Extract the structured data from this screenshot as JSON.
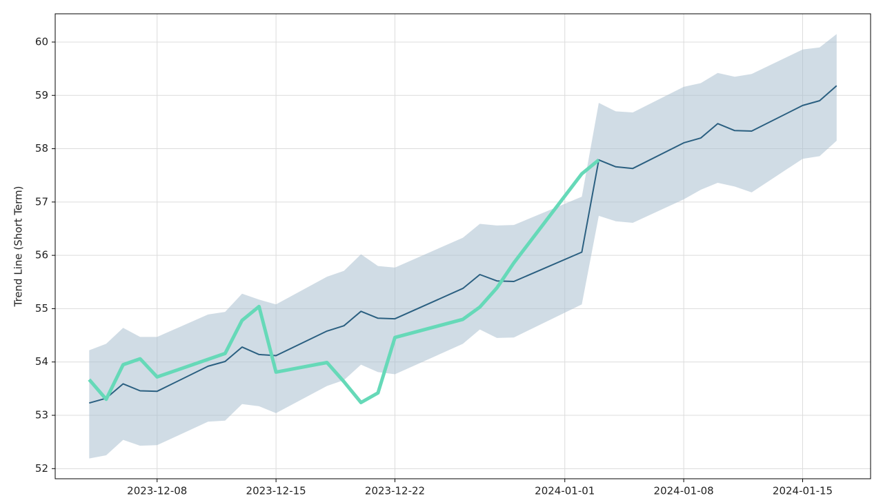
{
  "chart_data": {
    "type": "line",
    "y_label": "Trend Line (Short Term)",
    "x": [
      "2023-12-04",
      "2023-12-05",
      "2023-12-06",
      "2023-12-07",
      "2023-12-08",
      "2023-12-11",
      "2023-12-12",
      "2023-12-13",
      "2023-12-14",
      "2023-12-15",
      "2023-12-18",
      "2023-12-19",
      "2023-12-20",
      "2023-12-21",
      "2023-12-22",
      "2023-12-26",
      "2023-12-27",
      "2023-12-28",
      "2023-12-29",
      "2024-01-02",
      "2024-01-03",
      "2024-01-04",
      "2024-01-05",
      "2024-01-08",
      "2024-01-09",
      "2024-01-10",
      "2024-01-11",
      "2024-01-12",
      "2024-01-15",
      "2024-01-16",
      "2024-01-17"
    ],
    "band": {
      "color": "#a9c0cf",
      "upper": [
        54.22,
        54.34,
        54.64,
        54.47,
        54.47,
        54.89,
        54.94,
        55.28,
        55.17,
        55.08,
        55.6,
        55.71,
        56.02,
        55.8,
        55.77,
        56.33,
        56.59,
        56.56,
        56.57,
        57.1,
        58.86,
        58.7,
        58.68,
        59.16,
        59.23,
        59.42,
        59.35,
        59.4,
        59.86,
        59.9,
        60.15
      ],
      "lower": [
        52.19,
        52.25,
        52.54,
        52.43,
        52.44,
        52.88,
        52.9,
        53.21,
        53.17,
        53.04,
        53.55,
        53.66,
        53.95,
        53.81,
        53.77,
        54.34,
        54.61,
        54.45,
        54.46,
        55.08,
        56.74,
        56.64,
        56.61,
        57.05,
        57.23,
        57.36,
        57.29,
        57.18,
        57.81,
        57.86,
        58.15
      ]
    },
    "series": [
      {
        "color": "#2a5f80",
        "width": 2,
        "values": [
          53.23,
          53.32,
          53.59,
          53.46,
          53.45,
          53.92,
          54.01,
          54.28,
          54.14,
          54.12,
          54.58,
          54.68,
          54.95,
          54.82,
          54.81,
          55.38,
          55.64,
          55.52,
          55.51,
          56.06,
          57.79,
          57.66,
          57.63,
          58.11,
          58.2,
          58.47,
          58.34,
          58.33,
          58.81,
          58.9,
          59.18
        ]
      },
      {
        "color": "#66d9b8",
        "width": 5,
        "values": [
          53.67,
          53.3,
          53.95,
          54.06,
          53.72,
          54.05,
          54.16,
          54.78,
          55.04,
          53.81,
          53.99,
          53.63,
          53.24,
          53.42,
          54.46,
          54.8,
          55.03,
          55.39,
          55.86,
          57.53,
          57.79,
          null,
          null,
          null,
          null,
          null,
          null,
          null,
          null,
          null,
          null
        ]
      }
    ],
    "xlim": [
      "2023-12-02",
      "2024-01-19"
    ],
    "xticks": [
      "2023-12-08",
      "2023-12-15",
      "2023-12-22",
      "2024-01-01",
      "2024-01-08",
      "2024-01-15"
    ],
    "ylim": [
      51.81,
      60.53
    ],
    "yticks": [
      52,
      53,
      54,
      55,
      56,
      57,
      58,
      59,
      60
    ],
    "grid": true
  }
}
